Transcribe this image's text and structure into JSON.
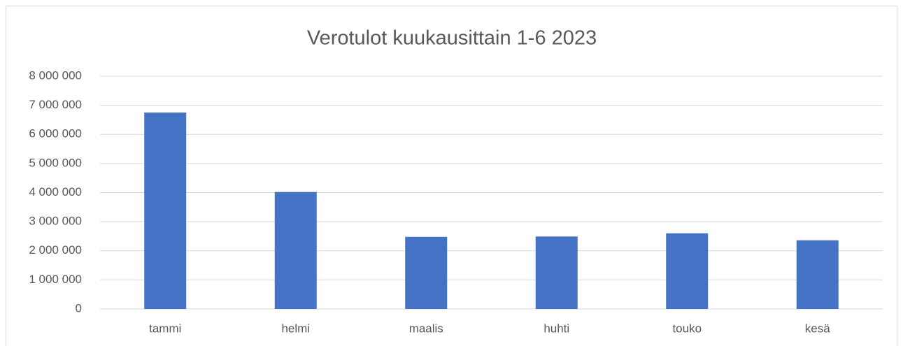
{
  "chart_data": {
    "type": "bar",
    "title": "Verotulot kuukausittain 1-6 2023",
    "categories": [
      "tammi",
      "helmi",
      "maalis",
      "huhti",
      "touko",
      "kesä"
    ],
    "values": [
      6750000,
      4020000,
      2480000,
      2490000,
      2600000,
      2360000
    ],
    "color": "#4472c4",
    "ylim": [
      0,
      8000000
    ],
    "yticks": [
      0,
      {
        "value": 1000000,
        "label": "1 000 000"
      },
      {
        "value": 2000000,
        "label": "2 000 000"
      },
      {
        "value": 3000000,
        "label": "3 000 000"
      },
      {
        "value": 4000000,
        "label": "4 000 000"
      },
      {
        "value": 5000000,
        "label": "5 000 000"
      },
      {
        "value": 6000000,
        "label": "6 000 000"
      },
      {
        "value": 7000000,
        "label": "7 000 000"
      },
      {
        "value": 8000000,
        "label": "8 000 000"
      }
    ],
    "grid": true
  }
}
